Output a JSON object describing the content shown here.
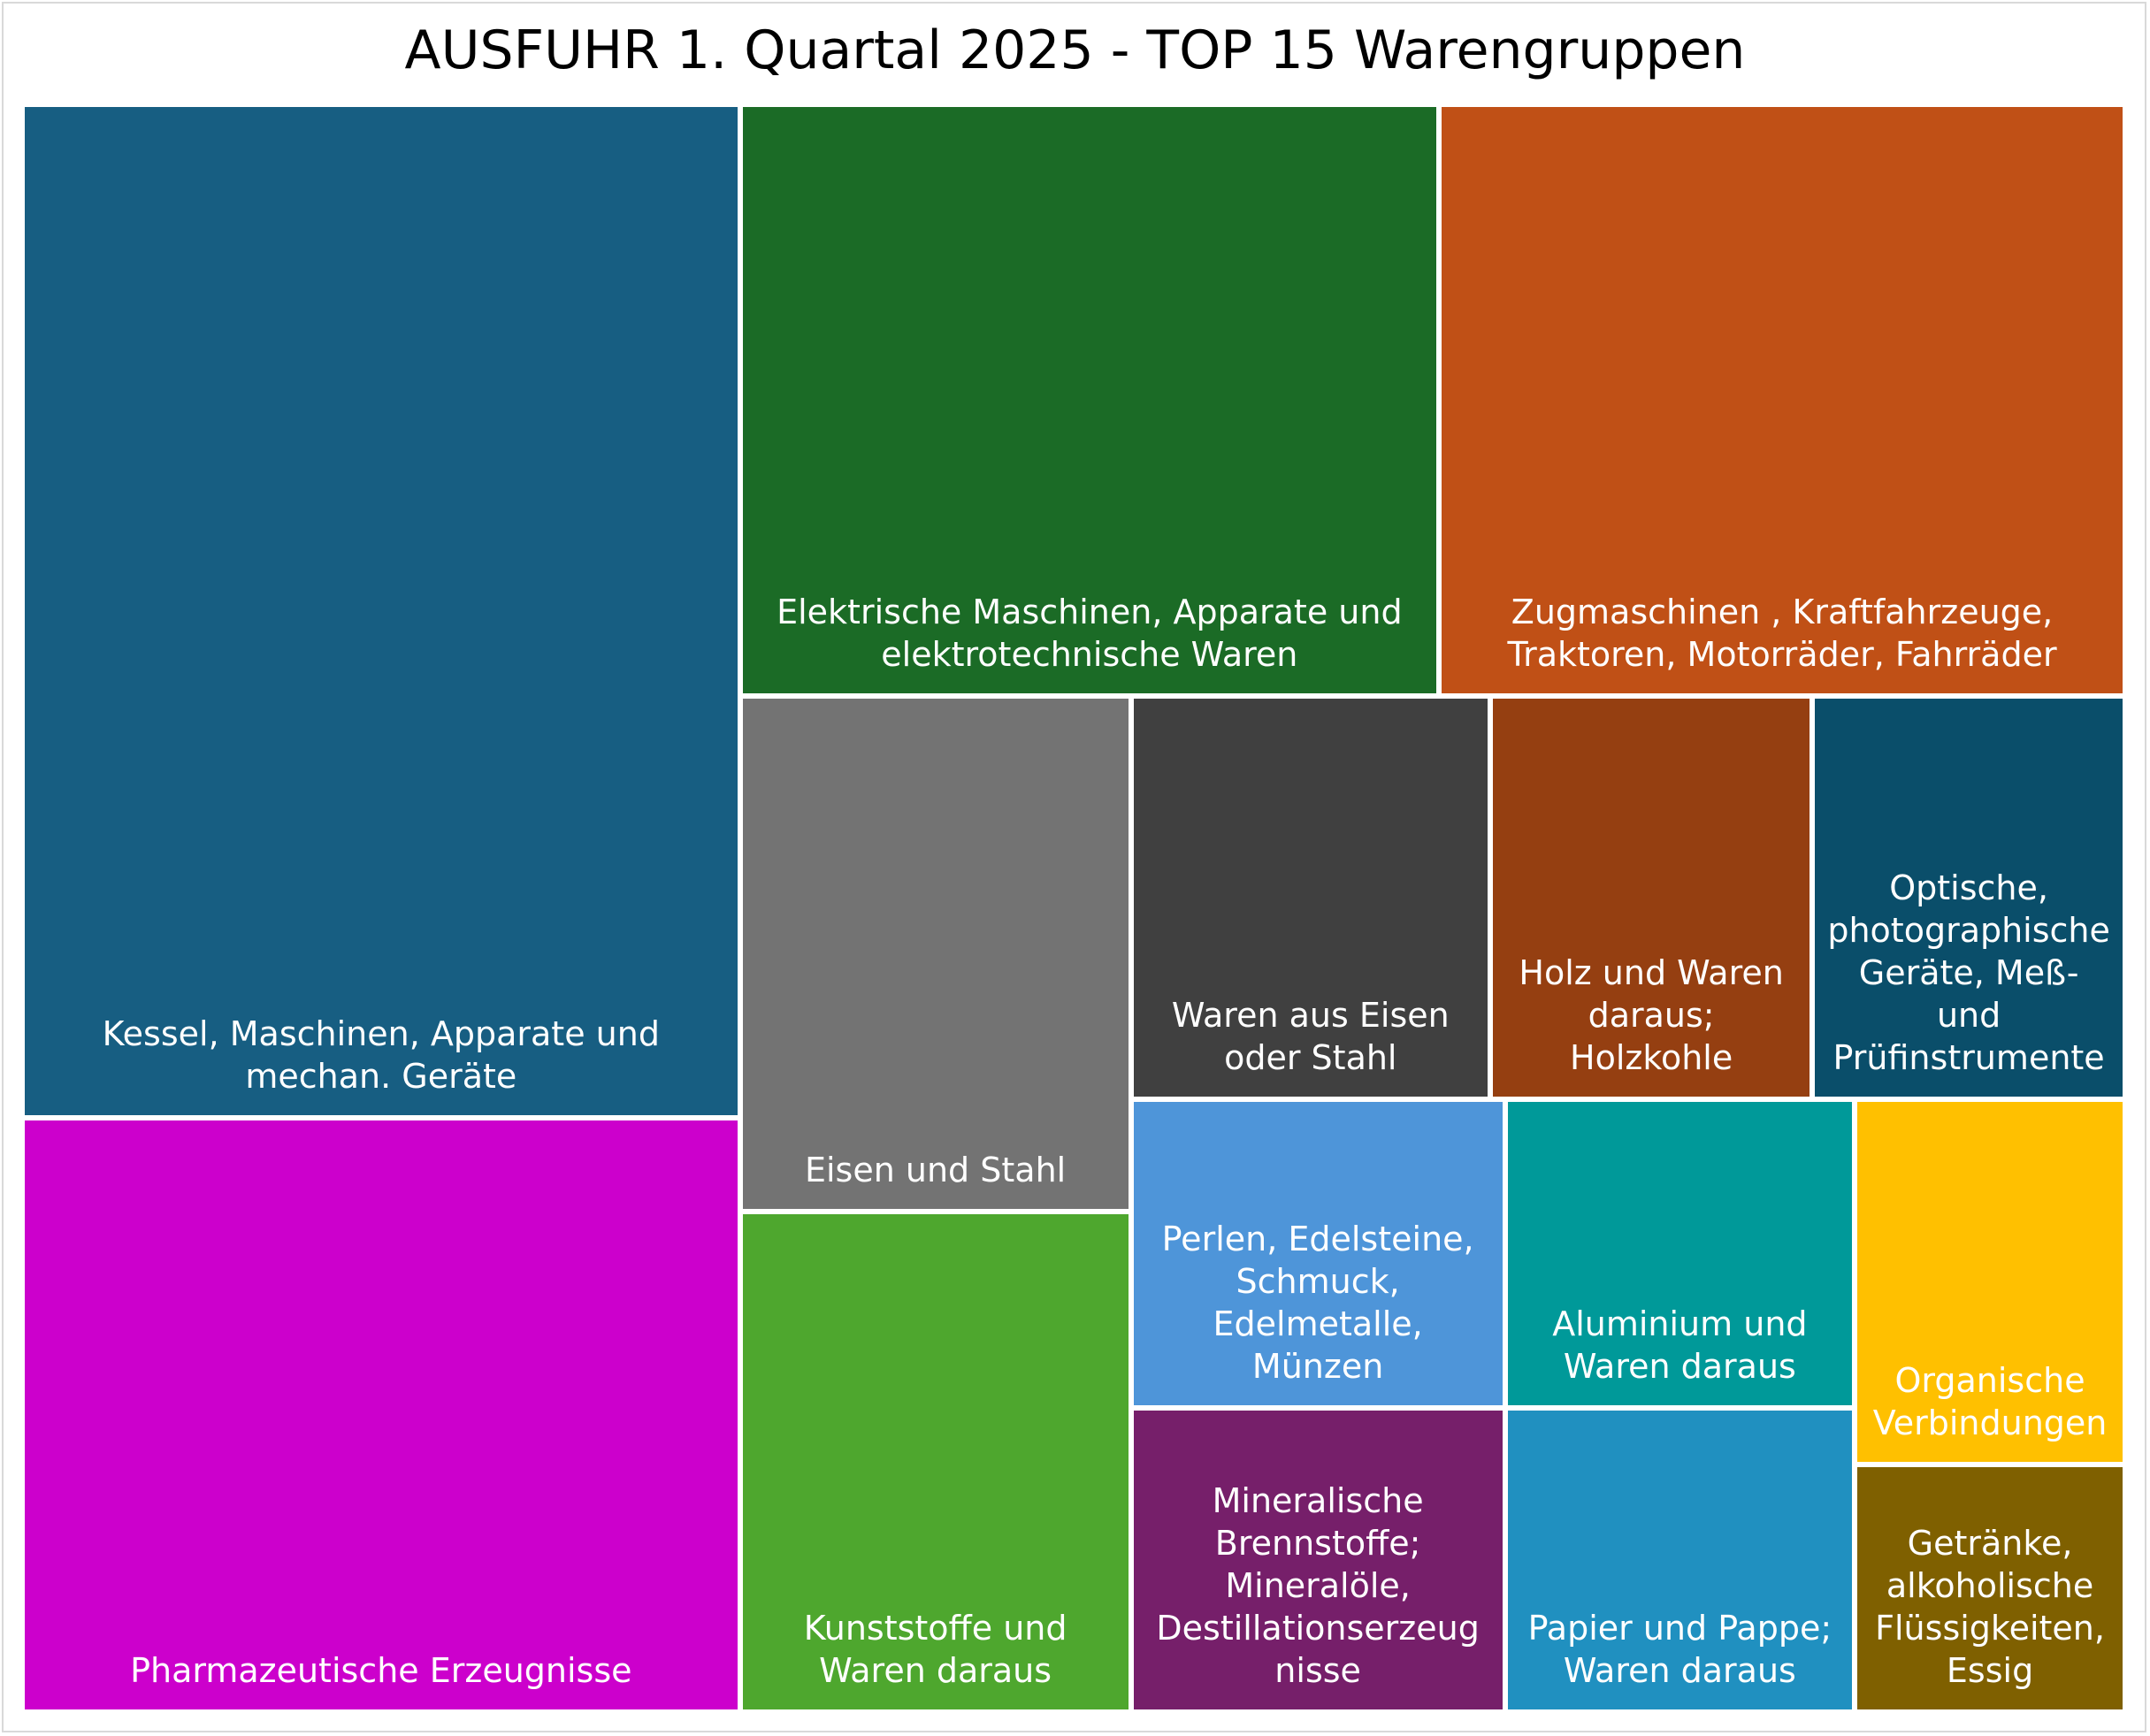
{
  "chart_data": {
    "type": "treemap",
    "title": "AUSFUHR 1. Quartal 2025 - TOP 15 Warengruppen",
    "categories": [
      "Kessel, Maschinen, Apparate und mechan. Geräte",
      "Pharmazeutische Erzeugnisse",
      "Elektrische Maschinen, Apparate und elektrotechnische Waren",
      "Zugmaschinen , Kraftfahrzeuge, Traktoren, Motorräder, Fahrräder",
      "Eisen und Stahl",
      "Kunststoffe und Waren daraus",
      "Waren aus Eisen oder Stahl",
      "Holz und Waren daraus; Holzkohle",
      "Optische, photographische Geräte, Meß- und Prüfinstrumente",
      "Perlen, Edelsteine, Schmuck, Edelmetalle, Münzen",
      "Mineralische Brennstoffe; Mineralöle, Destillationserzeugnisse",
      "Aluminium und Waren daraus",
      "Papier und Pappe; Waren daraus",
      "Organische Verbindungen",
      "Getränke, alkoholische Flüssigkeiten, Essig"
    ],
    "values": [
      380,
      222,
      216,
      212,
      105,
      102,
      76,
      68,
      66,
      61,
      60,
      57,
      56,
      52,
      35
    ],
    "colors": [
      "#175e82",
      "#cc00cc",
      "#1b6b26",
      "#c05016",
      "#737373",
      "#4ea72e",
      "#404040",
      "#953f11",
      "#0a4e6a",
      "#4e95d9",
      "#761f6a",
      "#009999",
      "#2090c0",
      "#ffc000",
      "#7f6000"
    ]
  }
}
